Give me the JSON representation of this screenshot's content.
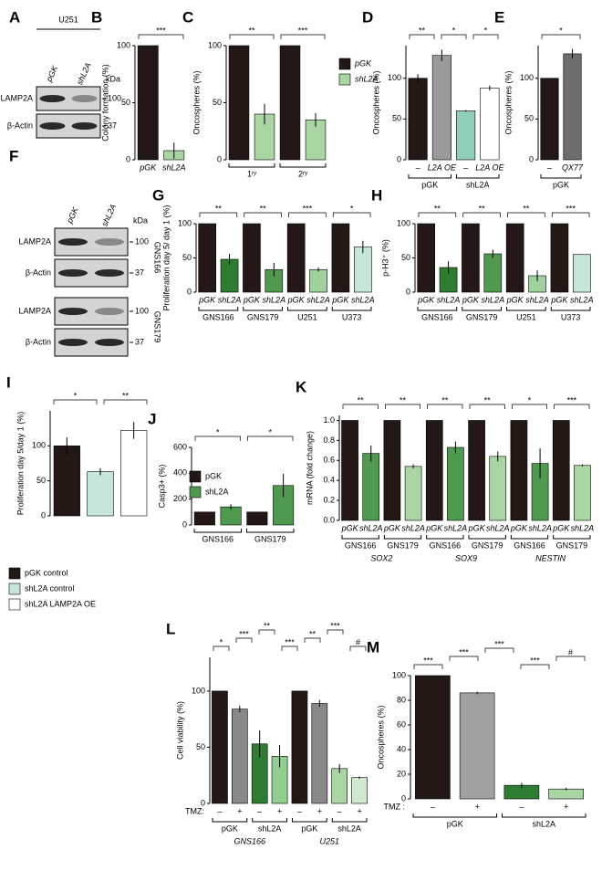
{
  "blots": [
    {
      "label": "A",
      "title": "U251",
      "lanes": [
        "pGK",
        "shL2A"
      ],
      "rows": [
        "LAMP2A",
        "β-Actin"
      ],
      "unit": "kDa",
      "markers": [
        100,
        37
      ]
    },
    {
      "label": "F",
      "lanes": [
        "pGK",
        "shL2A"
      ],
      "rows": [
        "LAMP2A",
        "β-Actin",
        "LAMP2A",
        "β-Actin"
      ],
      "unit": "kDa",
      "markers": [
        100,
        37,
        100,
        37
      ],
      "sides": [
        "GNS166",
        "GNS179"
      ]
    }
  ],
  "chart_data": [
    {
      "type": "bar",
      "label": "B",
      "ylabel": "Colony formation (%)",
      "values": [
        100,
        8
      ],
      "errors": [
        0,
        7
      ],
      "colors": [
        "#231815",
        "#a8d5a2"
      ],
      "categories": [
        "pGK",
        "shL2A"
      ],
      "annotations": [
        "***"
      ],
      "ylim": [
        0,
        100
      ],
      "yticks": [
        0,
        50,
        100
      ]
    },
    {
      "type": "bar",
      "label": "C",
      "ylabel": "Oncospheres (%)",
      "values": [
        100,
        40,
        100,
        35
      ],
      "errors": [
        0,
        9,
        0,
        6
      ],
      "colors": [
        "#231815",
        "#a8d5a2",
        "#231815",
        "#a8d5a2"
      ],
      "groups": [
        "1ʳʸ",
        "2ʳʸ"
      ],
      "legend": [
        {
          "name": "pGK",
          "color": "#231815"
        },
        {
          "name": "shL2A",
          "color": "#a8d5a2"
        }
      ],
      "annotations": [
        "**",
        "***"
      ],
      "ylim": [
        0,
        100
      ],
      "yticks": [
        0,
        50,
        100
      ]
    },
    {
      "type": "bar",
      "label": "D",
      "ylabel": "Oncospheres (%)",
      "values": [
        100,
        128,
        60,
        88
      ],
      "errors": [
        5,
        7,
        1,
        3
      ],
      "colors": [
        "#231815",
        "#9a9a9a",
        "#8fcfb8",
        "#ffffff"
      ],
      "categories": [
        "–",
        "L2A OE",
        "–",
        "L2A OE"
      ],
      "groups": [
        "pGK",
        "shL2A"
      ],
      "annotations": [
        "**",
        "*",
        "*"
      ],
      "ylim": [
        0,
        140
      ],
      "yticks": [
        0,
        50,
        100
      ]
    },
    {
      "type": "bar",
      "label": "E",
      "ylabel": "Oncospheres (%)",
      "values": [
        100,
        130
      ],
      "errors": [
        0,
        6
      ],
      "colors": [
        "#231815",
        "#6d6d6d"
      ],
      "categories": [
        "–",
        "QX77"
      ],
      "groups": [
        "pGK"
      ],
      "annotations": [
        "*"
      ],
      "ylim": [
        0,
        140
      ],
      "yticks": [
        0,
        50,
        100
      ]
    },
    {
      "type": "bar",
      "label": "G",
      "ylabel": "Proliferation day 5/ day 1 (%)",
      "values": [
        100,
        48,
        100,
        33,
        100,
        33,
        100,
        66
      ],
      "errors": [
        0,
        8,
        0,
        10,
        0,
        3,
        0,
        9
      ],
      "colors": [
        "#231815",
        "#2e7d32",
        "#231815",
        "#4f9a4f",
        "#231815",
        "#9fd19f",
        "#231815",
        "#c6e6d8"
      ],
      "categories": [
        "pGK",
        "shL2A",
        "pGK",
        "shL2A",
        "pGK",
        "shL2A",
        "pGK",
        "shL2A"
      ],
      "groups": [
        "GNS166",
        "GNS179",
        "U251",
        "U373"
      ],
      "annotations": [
        "**",
        "**",
        "***",
        "*"
      ],
      "ylim": [
        0,
        100
      ],
      "yticks": [
        0,
        50,
        100
      ]
    },
    {
      "type": "bar",
      "label": "H",
      "ylabel": "p-H3⁺ (%)",
      "values": [
        100,
        36,
        100,
        56,
        100,
        24,
        100,
        55
      ],
      "errors": [
        0,
        9,
        0,
        6,
        0,
        8,
        0,
        0
      ],
      "colors": [
        "#231815",
        "#2e7d32",
        "#231815",
        "#4f9a4f",
        "#231815",
        "#9fd19f",
        "#231815",
        "#c6e6d8"
      ],
      "categories": [
        "pGK",
        "shL2A",
        "pGK",
        "shL2A",
        "pGK",
        "shL2A",
        "pGK",
        "shL2A"
      ],
      "groups": [
        "GNS166",
        "GNS179",
        "U251",
        "U373"
      ],
      "annotations": [
        "**",
        "**",
        "**",
        "***"
      ],
      "ylim": [
        0,
        100
      ],
      "yticks": [
        0,
        50,
        100
      ]
    },
    {
      "type": "bar",
      "label": "I",
      "ylabel": "Proliferation day 5/day 1 (%)",
      "values": [
        100,
        63,
        122
      ],
      "errors": [
        12,
        5,
        12
      ],
      "colors": [
        "#231815",
        "#c6e6dc",
        "#ffffff"
      ],
      "legend": [
        {
          "name": "pGK control",
          "color": "#231815"
        },
        {
          "name": "shL2A control",
          "color": "#c6e6dc"
        },
        {
          "name": "shL2A LAMP2A OE",
          "color": "#ffffff"
        }
      ],
      "annotations": [
        "*",
        "**"
      ],
      "ylim": [
        0,
        150
      ],
      "yticks": [
        0,
        50,
        100
      ]
    },
    {
      "type": "bar",
      "label": "J",
      "ylabel": "Casp3+ (%)",
      "values": [
        100,
        140,
        100,
        305
      ],
      "errors": [
        0,
        20,
        0,
        90
      ],
      "colors": [
        "#231815",
        "#4f9a4f",
        "#231815",
        "#4f9a4f"
      ],
      "groups": [
        "GNS166",
        "GNS179"
      ],
      "legend": [
        {
          "name": "pGK",
          "color": "#231815"
        },
        {
          "name": "shL2A",
          "color": "#4f9a4f"
        }
      ],
      "annotations": [
        "*",
        "*"
      ],
      "ylim": [
        0,
        600
      ],
      "yticks": [
        0,
        200,
        400,
        600
      ]
    },
    {
      "type": "bar",
      "label": "K",
      "ylabel": "mRNA (fold change)",
      "values": [
        1,
        0.67,
        1,
        0.54,
        1,
        0.73,
        1,
        0.64,
        1,
        0.57,
        1,
        0.55
      ],
      "errors": [
        0,
        0.08,
        0,
        0.02,
        0,
        0.06,
        0,
        0.05,
        0,
        0.15,
        0,
        0.01
      ],
      "colors": [
        "#231815",
        "#4f9a4f",
        "#231815",
        "#a8d5a2",
        "#231815",
        "#4f9a4f",
        "#231815",
        "#a8d5a2",
        "#231815",
        "#4f9a4f",
        "#231815",
        "#a8d5a2"
      ],
      "categories": [
        "pGK",
        "shL2A",
        "pGK",
        "shL2A",
        "pGK",
        "shL2A",
        "pGK",
        "shL2A",
        "pGK",
        "shL2A",
        "pGK",
        "shL2A"
      ],
      "groups": [
        "GNS166",
        "GNS179",
        "GNS166",
        "GNS179",
        "GNS166",
        "GNS179"
      ],
      "supergroups": [
        "SOX2",
        "SOX9",
        "NESTIN"
      ],
      "annotations": [
        "**",
        "**",
        "**",
        "**",
        "*",
        "***"
      ],
      "ylim": [
        0,
        1.05
      ],
      "yticks": [
        {
          "value": 0,
          "label": "0.0"
        },
        0.2,
        0.4,
        0.6,
        0.8,
        {
          "value": 1,
          "label": "1.0"
        }
      ]
    },
    {
      "type": "bar",
      "label": "L",
      "ylabel": "Cell viability (%)",
      "values": [
        100,
        84,
        53,
        42,
        100,
        89,
        31,
        23
      ],
      "errors": [
        0,
        3,
        12,
        10,
        0,
        3,
        4,
        1
      ],
      "colors": [
        "#231815",
        "#888888",
        "#2e7d32",
        "#8fcf8f",
        "#231815",
        "#888888",
        "#a8d5a2",
        "#cfe8cf"
      ],
      "categories": [
        "–",
        "+",
        "–",
        "+",
        "–",
        "+",
        "–",
        "+"
      ],
      "groups": [
        "pGK",
        "shL2A",
        "pGK",
        "shL2A"
      ],
      "supergroups": [
        "GNS166",
        "U251"
      ],
      "xlabel": "TMZ:",
      "annotations": [
        "*",
        "***",
        "**",
        "***",
        "**",
        "***",
        "#"
      ],
      "ylim": [
        0,
        130
      ],
      "yticks": [
        0,
        50,
        100
      ]
    },
    {
      "type": "bar",
      "label": "M",
      "ylabel": "Oncospheres (%)",
      "values": [
        100,
        86,
        11,
        8
      ],
      "errors": [
        0,
        1,
        2,
        1
      ],
      "colors": [
        "#231815",
        "#a0a0a0",
        "#2e7d32",
        "#a8d5a2"
      ],
      "categories": [
        "–",
        "+",
        "–",
        "+"
      ],
      "groups": [
        "pGK",
        "shL2A"
      ],
      "xlabel": "TMZ :",
      "annotations": [
        "***",
        "***",
        "***",
        "***",
        "#"
      ],
      "ylim": [
        0,
        100
      ],
      "yticks": [
        0,
        20,
        40,
        60,
        80,
        100
      ]
    }
  ]
}
